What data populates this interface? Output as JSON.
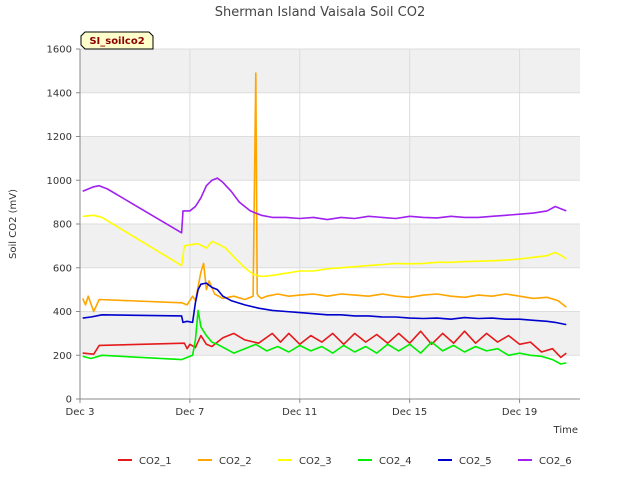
{
  "chart_data": {
    "type": "line",
    "title": "Sherman Island Vaisala Soil CO2",
    "tag": "SI_soilco2",
    "xlabel": "Time",
    "ylabel": "Soil CO2 (mV)",
    "xlim": [
      0,
      18.2
    ],
    "ylim": [
      0,
      1600
    ],
    "yticks": [
      0,
      200,
      400,
      600,
      800,
      1000,
      1200,
      1400,
      1600
    ],
    "xticks": [
      {
        "v": 0,
        "label": "Dec 3"
      },
      {
        "v": 4,
        "label": "Dec 7"
      },
      {
        "v": 8,
        "label": "Dec 11"
      },
      {
        "v": 12,
        "label": "Dec 15"
      },
      {
        "v": 16,
        "label": "Dec 19"
      }
    ],
    "grid": true,
    "legend_position": "bottom",
    "series": [
      {
        "name": "CO2_1",
        "color": "#e41a1c",
        "x": [
          0.1,
          0.5,
          0.7,
          3.8,
          3.9,
          4.0,
          4.2,
          4.4,
          4.6,
          4.8,
          5.2,
          5.6,
          6.0,
          6.5,
          7.0,
          7.3,
          7.6,
          8.0,
          8.4,
          8.8,
          9.2,
          9.6,
          10.0,
          10.4,
          10.8,
          11.2,
          11.6,
          12.0,
          12.4,
          12.8,
          13.2,
          13.6,
          14.0,
          14.4,
          14.8,
          15.2,
          15.6,
          16.0,
          16.4,
          16.8,
          17.2,
          17.5,
          17.7
        ],
        "values": [
          210,
          205,
          245,
          255,
          230,
          250,
          235,
          290,
          250,
          240,
          280,
          300,
          270,
          255,
          300,
          260,
          300,
          250,
          290,
          260,
          300,
          250,
          300,
          260,
          295,
          255,
          300,
          255,
          310,
          250,
          300,
          255,
          310,
          255,
          300,
          260,
          290,
          250,
          260,
          215,
          230,
          190,
          210
        ]
      },
      {
        "name": "CO2_2",
        "color": "#ffa500",
        "x": [
          0.1,
          0.2,
          0.3,
          0.5,
          0.7,
          3.7,
          3.9,
          4.1,
          4.2,
          4.4,
          4.5,
          4.6,
          4.7,
          4.9,
          5.2,
          5.6,
          6.0,
          6.3,
          6.4,
          6.45,
          6.5,
          6.6,
          6.8,
          7.2,
          7.6,
          8.0,
          8.5,
          9.0,
          9.5,
          10.0,
          10.5,
          11.0,
          11.5,
          12.0,
          12.5,
          13.0,
          13.5,
          14.0,
          14.5,
          15.0,
          15.5,
          16.0,
          16.5,
          17.0,
          17.4,
          17.7
        ],
        "values": [
          460,
          430,
          470,
          400,
          455,
          440,
          430,
          470,
          450,
          580,
          620,
          500,
          540,
          480,
          460,
          470,
          455,
          470,
          1490,
          480,
          470,
          460,
          470,
          480,
          470,
          475,
          480,
          470,
          480,
          475,
          470,
          480,
          470,
          465,
          475,
          480,
          470,
          465,
          475,
          470,
          480,
          470,
          460,
          465,
          450,
          420
        ]
      },
      {
        "name": "CO2_3",
        "color": "#ffff00",
        "x": [
          0.1,
          0.5,
          0.8,
          3.7,
          3.8,
          4.0,
          4.3,
          4.6,
          4.8,
          5.0,
          5.3,
          5.6,
          6.0,
          6.3,
          6.6,
          7.0,
          7.5,
          8.0,
          8.5,
          9.0,
          9.5,
          10.0,
          10.5,
          11.0,
          11.5,
          12.0,
          12.5,
          13.0,
          13.5,
          14.0,
          14.5,
          15.0,
          15.5,
          16.0,
          16.5,
          17.0,
          17.3,
          17.6,
          17.7
        ],
        "values": [
          835,
          840,
          830,
          610,
          700,
          705,
          710,
          690,
          720,
          710,
          690,
          650,
          600,
          570,
          560,
          565,
          575,
          585,
          585,
          595,
          600,
          605,
          610,
          615,
          620,
          618,
          620,
          625,
          625,
          628,
          630,
          632,
          635,
          640,
          648,
          655,
          670,
          650,
          640
        ]
      },
      {
        "name": "CO2_4",
        "color": "#00ee00",
        "x": [
          0.1,
          0.4,
          0.8,
          3.7,
          3.9,
          4.1,
          4.2,
          4.3,
          4.4,
          4.5,
          4.6,
          4.8,
          5.0,
          5.3,
          5.6,
          6.0,
          6.4,
          6.8,
          7.2,
          7.6,
          8.0,
          8.4,
          8.8,
          9.2,
          9.6,
          10.0,
          10.4,
          10.8,
          11.2,
          11.6,
          12.0,
          12.4,
          12.8,
          13.2,
          13.6,
          14.0,
          14.4,
          14.8,
          15.2,
          15.6,
          16.0,
          16.4,
          16.8,
          17.2,
          17.5,
          17.7
        ],
        "values": [
          195,
          185,
          200,
          180,
          190,
          200,
          270,
          405,
          330,
          310,
          290,
          260,
          250,
          230,
          210,
          230,
          250,
          220,
          240,
          215,
          245,
          220,
          240,
          210,
          245,
          215,
          240,
          210,
          250,
          220,
          250,
          210,
          260,
          220,
          245,
          215,
          240,
          220,
          230,
          200,
          210,
          200,
          195,
          180,
          160,
          165
        ]
      },
      {
        "name": "CO2_5",
        "color": "#0000cd",
        "x": [
          0.1,
          0.4,
          0.8,
          3.7,
          3.75,
          3.9,
          4.1,
          4.2,
          4.3,
          4.4,
          4.6,
          4.8,
          5.0,
          5.2,
          5.5,
          6.0,
          6.5,
          7.0,
          7.5,
          8.0,
          8.5,
          9.0,
          9.5,
          10.0,
          10.5,
          11.0,
          11.5,
          12.0,
          12.5,
          13.0,
          13.5,
          14.0,
          14.5,
          15.0,
          15.5,
          16.0,
          16.5,
          17.0,
          17.3,
          17.7
        ],
        "values": [
          370,
          375,
          385,
          380,
          350,
          355,
          350,
          440,
          500,
          525,
          530,
          510,
          500,
          470,
          450,
          430,
          415,
          405,
          400,
          395,
          390,
          385,
          385,
          380,
          380,
          375,
          375,
          370,
          368,
          370,
          365,
          372,
          368,
          370,
          365,
          365,
          360,
          355,
          350,
          340
        ]
      },
      {
        "name": "CO2_6",
        "color": "#a020f0",
        "x": [
          0.1,
          0.3,
          0.5,
          0.7,
          1.0,
          3.7,
          3.75,
          4.0,
          4.2,
          4.4,
          4.6,
          4.8,
          5.0,
          5.2,
          5.5,
          5.8,
          6.2,
          6.6,
          7.0,
          7.5,
          8.0,
          8.5,
          9.0,
          9.5,
          10.0,
          10.5,
          11.0,
          11.5,
          12.0,
          12.5,
          13.0,
          13.5,
          14.0,
          14.5,
          15.0,
          15.5,
          16.0,
          16.5,
          17.0,
          17.3,
          17.5,
          17.7
        ],
        "values": [
          950,
          960,
          970,
          975,
          960,
          760,
          860,
          860,
          880,
          920,
          975,
          1000,
          1010,
          990,
          950,
          900,
          860,
          840,
          830,
          830,
          825,
          830,
          820,
          830,
          825,
          835,
          830,
          825,
          835,
          830,
          828,
          835,
          830,
          830,
          835,
          840,
          845,
          850,
          860,
          880,
          870,
          860
        ]
      }
    ]
  }
}
